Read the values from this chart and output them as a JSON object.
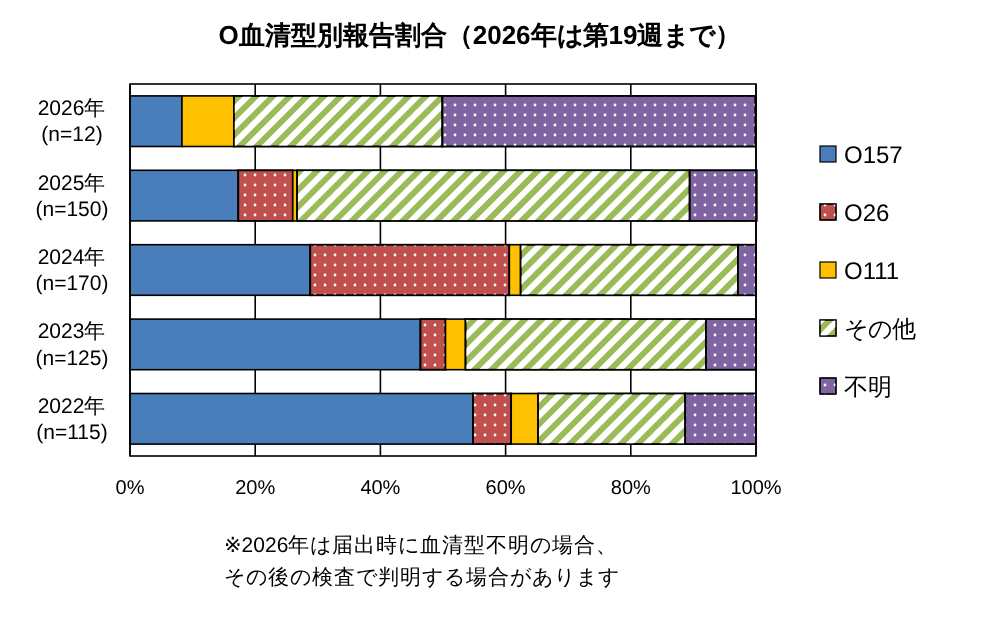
{
  "chart_data": {
    "type": "bar",
    "orientation": "horizontal",
    "stacked": true,
    "title": "O血清型別報告割合（2026年は第19週まで）",
    "categories": [
      "2026年\n(n=12)",
      "2025年\n(n=150)",
      "2024年\n(n=170)",
      "2023年\n(n=125)",
      "2022年\n(n=115)"
    ],
    "series": [
      {
        "name": "O157",
        "color": "#4a7ebb",
        "values": [
          8.3,
          17.3,
          28.8,
          46.4,
          54.8
        ]
      },
      {
        "name": "O26",
        "color": "#c0504d",
        "values": [
          0,
          8.7,
          31.8,
          4.0,
          6.1
        ]
      },
      {
        "name": "O111",
        "color": "#ffc000",
        "values": [
          8.3,
          0.7,
          1.8,
          3.2,
          4.3
        ]
      },
      {
        "name": "その他",
        "color": "#9bbb59",
        "values": [
          33.3,
          62.7,
          34.7,
          38.4,
          23.5
        ]
      },
      {
        "name": "不明",
        "color": "#8064a2",
        "values": [
          50.0,
          10.7,
          2.9,
          8.0,
          11.3
        ]
      }
    ],
    "xlim": [
      0,
      100
    ],
    "xticks": [
      {
        "value": 0,
        "label": "0%"
      },
      {
        "value": 20,
        "label": "20%"
      },
      {
        "value": 40,
        "label": "40%"
      },
      {
        "value": 60,
        "label": "60%"
      },
      {
        "value": 80,
        "label": "80%"
      },
      {
        "value": 100,
        "label": "100%"
      }
    ],
    "grid": "x",
    "legend": "right",
    "annotations": [
      "※2026年は届出時に血清型不明の場合、",
      "その後の検査で判明する場合があります"
    ]
  }
}
